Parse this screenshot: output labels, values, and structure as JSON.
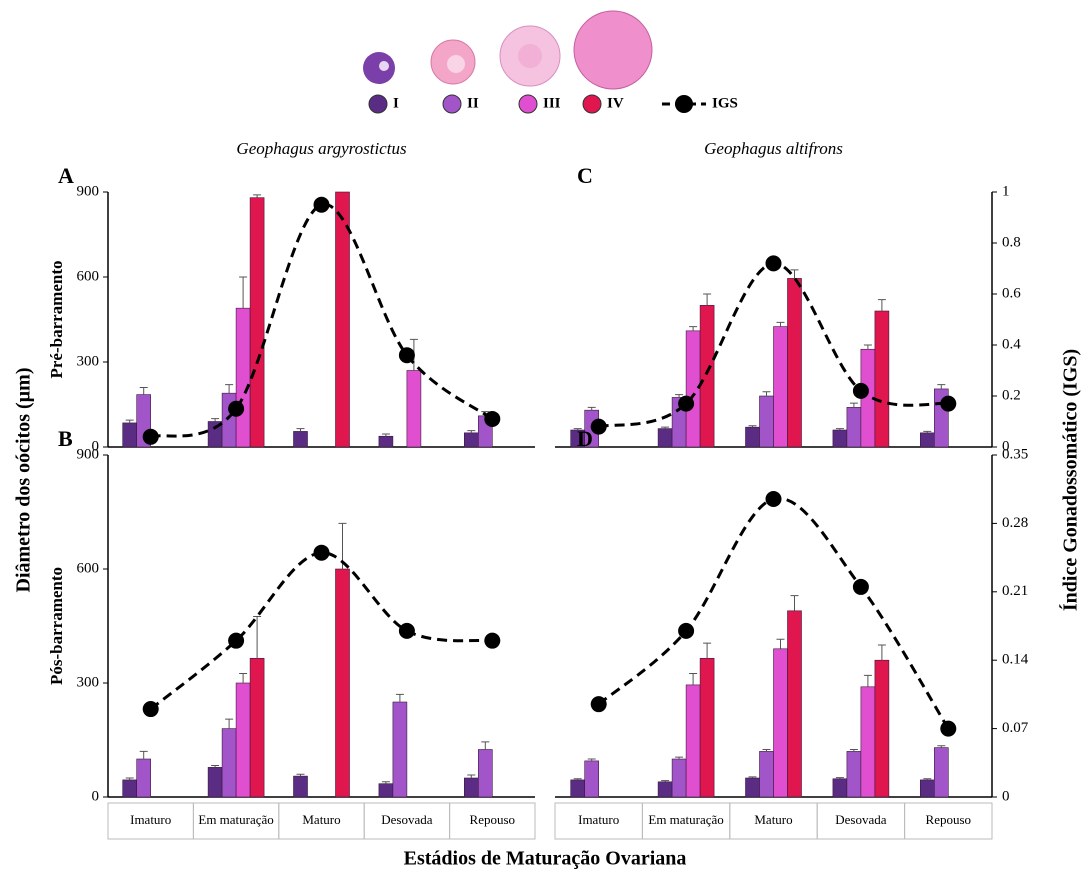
{
  "legend": {
    "entries": [
      {
        "name": "I",
        "color": "#5b2c83"
      },
      {
        "name": "II",
        "color": "#a155c9"
      },
      {
        "name": "III",
        "color": "#e04fd0"
      },
      {
        "name": "IV",
        "color": "#e0164f"
      },
      {
        "name": "IGS",
        "color": "#000000"
      }
    ]
  },
  "axes": {
    "y_label": "Diâmetro dos oócitos (µm)",
    "y2_label": "Índice Gonadossomático (IGS)",
    "x_label": "Estádios de Maturação Ovariana"
  },
  "chart_data": [
    {
      "type": "bar",
      "title": "A",
      "subtitle": "Geophagus argyrostictus",
      "y_label": "Pré-barramento",
      "ylim": [
        0,
        900
      ],
      "yticks": [
        0,
        300,
        600,
        900
      ],
      "y2lim": [
        0,
        1
      ],
      "series": [
        {
          "values": [
            85,
            90,
            55,
            38,
            50
          ],
          "errors": [
            10,
            10,
            10,
            8,
            8
          ]
        },
        {
          "values": [
            185,
            190,
            null,
            null,
            110
          ],
          "errors": [
            25,
            30,
            null,
            null,
            15
          ]
        },
        {
          "values": [
            null,
            490,
            null,
            270,
            null
          ],
          "errors": [
            null,
            110,
            null,
            110,
            null
          ]
        },
        {
          "values": [
            null,
            880,
            900,
            null,
            null
          ],
          "errors": [
            null,
            10,
            null,
            null,
            null
          ]
        },
        {
          "type": "line",
          "axis": "y2",
          "values": [
            0.04,
            0.15,
            0.95,
            0.36,
            0.11
          ]
        }
      ]
    },
    {
      "type": "bar",
      "title": "B",
      "y_label": "Pós-barramento",
      "categories": [
        "Imaturo",
        "Em maturação",
        "Maturo",
        "Desovada",
        "Repouso"
      ],
      "ylim": [
        0,
        900
      ],
      "yticks": [
        0,
        300,
        600,
        900
      ],
      "y2lim": [
        0,
        0.35
      ],
      "series": [
        {
          "values": [
            45,
            78,
            55,
            35,
            50
          ],
          "errors": [
            5,
            5,
            5,
            5,
            8
          ]
        },
        {
          "values": [
            100,
            180,
            null,
            250,
            125
          ],
          "errors": [
            20,
            25,
            null,
            20,
            20
          ]
        },
        {
          "values": [
            null,
            300,
            null,
            null,
            null
          ],
          "errors": [
            null,
            25,
            null,
            null,
            null
          ]
        },
        {
          "values": [
            null,
            365,
            600,
            null,
            null
          ],
          "errors": [
            null,
            110,
            120,
            null,
            null
          ]
        },
        {
          "type": "line",
          "axis": "y2",
          "values": [
            0.09,
            0.16,
            0.25,
            0.17,
            0.16
          ]
        }
      ]
    },
    {
      "type": "bar",
      "title": "C",
      "subtitle": "Geophagus altifrons",
      "ylim": [
        0,
        900
      ],
      "y2lim": [
        0,
        1
      ],
      "y2ticks": [
        0,
        0.2,
        0.4,
        0.6,
        0.8,
        1
      ],
      "series": [
        {
          "values": [
            60,
            65,
            70,
            60,
            50
          ],
          "errors": [
            5,
            5,
            5,
            5,
            5
          ]
        },
        {
          "values": [
            130,
            175,
            180,
            140,
            205
          ],
          "errors": [
            10,
            10,
            15,
            15,
            15
          ]
        },
        {
          "values": [
            null,
            410,
            425,
            345,
            null
          ],
          "errors": [
            null,
            15,
            15,
            15,
            null
          ]
        },
        {
          "values": [
            null,
            500,
            595,
            480,
            null
          ],
          "errors": [
            null,
            40,
            30,
            40,
            null
          ]
        },
        {
          "type": "line",
          "axis": "y2",
          "values": [
            0.08,
            0.17,
            0.72,
            0.22,
            0.17
          ]
        }
      ]
    },
    {
      "type": "bar",
      "title": "D",
      "categories": [
        "Imaturo",
        "Em maturação",
        "Maturo",
        "Desovada",
        "Repouso"
      ],
      "ylim": [
        0,
        900
      ],
      "y2lim": [
        0,
        0.35
      ],
      "y2ticks": [
        0,
        0.07,
        0.14,
        0.21,
        0.28,
        0.35
      ],
      "series": [
        {
          "values": [
            45,
            40,
            50,
            48,
            45
          ],
          "errors": [
            3,
            3,
            3,
            3,
            3
          ]
        },
        {
          "values": [
            95,
            100,
            120,
            120,
            130
          ],
          "errors": [
            5,
            5,
            5,
            5,
            5
          ]
        },
        {
          "values": [
            null,
            295,
            390,
            290,
            null
          ],
          "errors": [
            null,
            30,
            25,
            30,
            null
          ]
        },
        {
          "values": [
            null,
            365,
            490,
            360,
            null
          ],
          "errors": [
            null,
            40,
            40,
            40,
            null
          ]
        },
        {
          "type": "line",
          "axis": "y2",
          "values": [
            0.095,
            0.17,
            0.305,
            0.215,
            0.07
          ]
        }
      ]
    }
  ]
}
